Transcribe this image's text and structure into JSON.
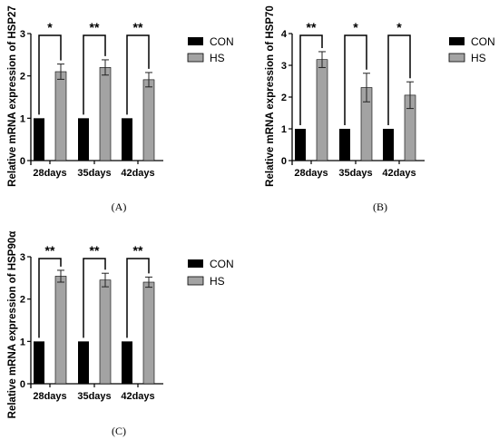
{
  "colors": {
    "con": "#000000",
    "hs": "#a3a3a3",
    "axis": "#000000"
  },
  "chart_data": [
    {
      "type": "bar",
      "panel_label": "(A)",
      "ylabel": "Relative mRNA expression of HSP27",
      "ylim": [
        0,
        3
      ],
      "yticks": [
        "0",
        "1",
        "2",
        "3"
      ],
      "categories": [
        "28days",
        "35days",
        "42days"
      ],
      "series": [
        {
          "name": "CON",
          "values": [
            1,
            1,
            1
          ],
          "errors": [
            0,
            0,
            0
          ]
        },
        {
          "name": "HS",
          "values": [
            2.1,
            2.2,
            1.91
          ],
          "errors": [
            0.18,
            0.18,
            0.17
          ]
        }
      ],
      "significance": [
        "*",
        "**",
        "**"
      ],
      "legend": [
        "CON",
        "HS"
      ],
      "legend_position": "right"
    },
    {
      "type": "bar",
      "panel_label": "(B)",
      "ylabel": "Relative mRNA expression of HSP70",
      "ylim": [
        0,
        4
      ],
      "yticks": [
        "0",
        "1",
        "2",
        "3",
        "4"
      ],
      "categories": [
        "28days",
        "35days",
        "42days"
      ],
      "series": [
        {
          "name": "CON",
          "values": [
            1,
            1,
            1
          ],
          "errors": [
            0,
            0,
            0
          ]
        },
        {
          "name": "HS",
          "values": [
            3.18,
            2.3,
            2.06
          ],
          "errors": [
            0.25,
            0.45,
            0.42
          ]
        }
      ],
      "significance": [
        "**",
        "*",
        "*"
      ],
      "legend": [
        "CON",
        "HS"
      ],
      "legend_position": "right"
    },
    {
      "type": "bar",
      "panel_label": "(C)",
      "ylabel": "Relative mRNA expression of HSP90α",
      "ylim": [
        0,
        3
      ],
      "yticks": [
        "0",
        "1",
        "2",
        "3"
      ],
      "categories": [
        "28days",
        "35days",
        "42days"
      ],
      "series": [
        {
          "name": "CON",
          "values": [
            1,
            1,
            1
          ],
          "errors": [
            0,
            0,
            0
          ]
        },
        {
          "name": "HS",
          "values": [
            2.54,
            2.45,
            2.4
          ],
          "errors": [
            0.14,
            0.16,
            0.12
          ]
        }
      ],
      "significance": [
        "**",
        "**",
        "**"
      ],
      "legend": [
        "CON",
        "HS"
      ],
      "legend_position": "right"
    }
  ]
}
